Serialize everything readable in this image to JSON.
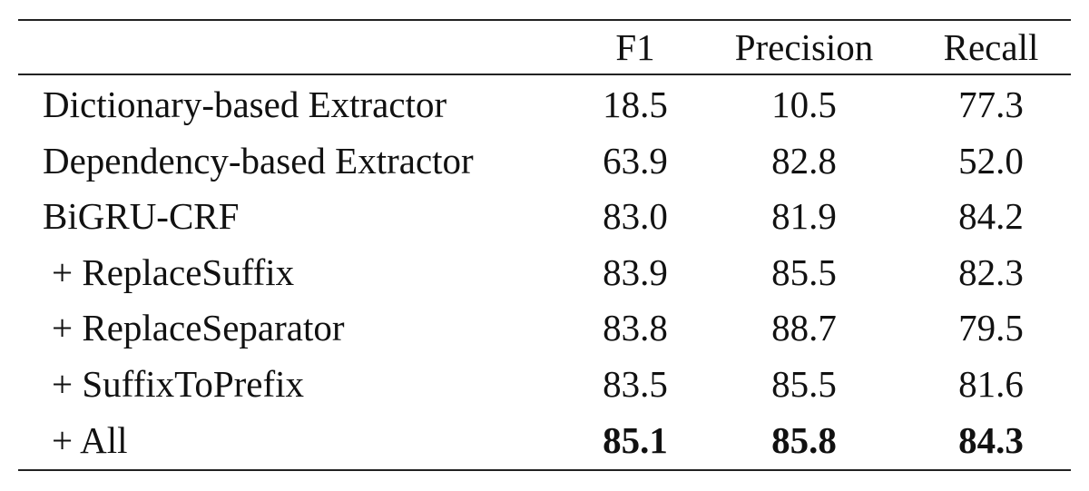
{
  "table": {
    "columns": [
      "F1",
      "Precision",
      "Recall"
    ],
    "rows": [
      {
        "label": "Dictionary-based Extractor",
        "cells": [
          "18.5",
          "10.5",
          "77.3"
        ]
      },
      {
        "label": "Dependency-based Extractor",
        "cells": [
          "63.9",
          "82.8",
          "52.0"
        ]
      },
      {
        "label": "BiGRU-CRF",
        "cells": [
          "83.0",
          "81.9",
          "84.2"
        ]
      },
      {
        "label": "+ ReplaceSuffix",
        "cells": [
          "83.9",
          "85.5",
          "82.3"
        ]
      },
      {
        "label": "+ ReplaceSeparator",
        "cells": [
          "83.8",
          "88.7",
          "79.5"
        ]
      },
      {
        "label": "+ SuffixToPrefix",
        "cells": [
          "83.5",
          "85.5",
          "81.6"
        ]
      },
      {
        "label": "+ All",
        "cells": [
          "85.1",
          "85.8",
          "84.3"
        ],
        "bold": true
      }
    ]
  }
}
